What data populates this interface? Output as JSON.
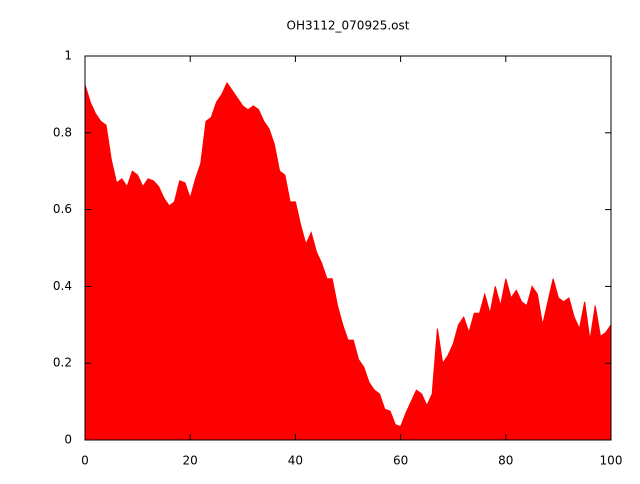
{
  "chart_data": {
    "type": "area",
    "title": "OH3112_070925.ost",
    "x": [
      0,
      1,
      2,
      3,
      4,
      5,
      6,
      7,
      8,
      9,
      10,
      11,
      12,
      13,
      14,
      15,
      16,
      17,
      18,
      19,
      20,
      21,
      22,
      23,
      24,
      25,
      26,
      27,
      28,
      29,
      30,
      31,
      32,
      33,
      34,
      35,
      36,
      37,
      38,
      39,
      40,
      41,
      42,
      43,
      44,
      45,
      46,
      47,
      48,
      49,
      50,
      51,
      52,
      53,
      54,
      55,
      56,
      57,
      58,
      59,
      60,
      61,
      62,
      63,
      64,
      65,
      66,
      67,
      68,
      69,
      70,
      71,
      72,
      73,
      74,
      75,
      76,
      77,
      78,
      79,
      80,
      81,
      82,
      83,
      84,
      85,
      86,
      87,
      88,
      89,
      90,
      91,
      92,
      93,
      94,
      95,
      96,
      97,
      98,
      99,
      100
    ],
    "values": [
      0.925,
      0.88,
      0.85,
      0.83,
      0.82,
      0.73,
      0.67,
      0.68,
      0.66,
      0.7,
      0.69,
      0.66,
      0.68,
      0.675,
      0.66,
      0.63,
      0.61,
      0.62,
      0.675,
      0.67,
      0.63,
      0.68,
      0.72,
      0.83,
      0.84,
      0.88,
      0.9,
      0.93,
      0.91,
      0.89,
      0.87,
      0.86,
      0.87,
      0.86,
      0.83,
      0.81,
      0.77,
      0.7,
      0.69,
      0.62,
      0.62,
      0.56,
      0.51,
      0.54,
      0.49,
      0.46,
      0.42,
      0.42,
      0.35,
      0.3,
      0.26,
      0.26,
      0.21,
      0.19,
      0.15,
      0.13,
      0.12,
      0.08,
      0.075,
      0.04,
      0.035,
      0.07,
      0.1,
      0.13,
      0.12,
      0.09,
      0.12,
      0.29,
      0.2,
      0.22,
      0.25,
      0.3,
      0.32,
      0.28,
      0.33,
      0.33,
      0.38,
      0.33,
      0.4,
      0.35,
      0.42,
      0.37,
      0.39,
      0.36,
      0.35,
      0.4,
      0.38,
      0.3,
      0.36,
      0.42,
      0.37,
      0.36,
      0.37,
      0.32,
      0.29,
      0.36,
      0.26,
      0.35,
      0.27,
      0.28,
      0.3
    ],
    "color": "#ff0000",
    "xlim": [
      0,
      100
    ],
    "xticks": [
      0,
      20,
      40,
      60,
      80,
      100
    ],
    "ylim": [
      0,
      1
    ],
    "yticks": [
      0,
      0.2,
      0.4,
      0.6,
      0.8,
      1
    ]
  }
}
